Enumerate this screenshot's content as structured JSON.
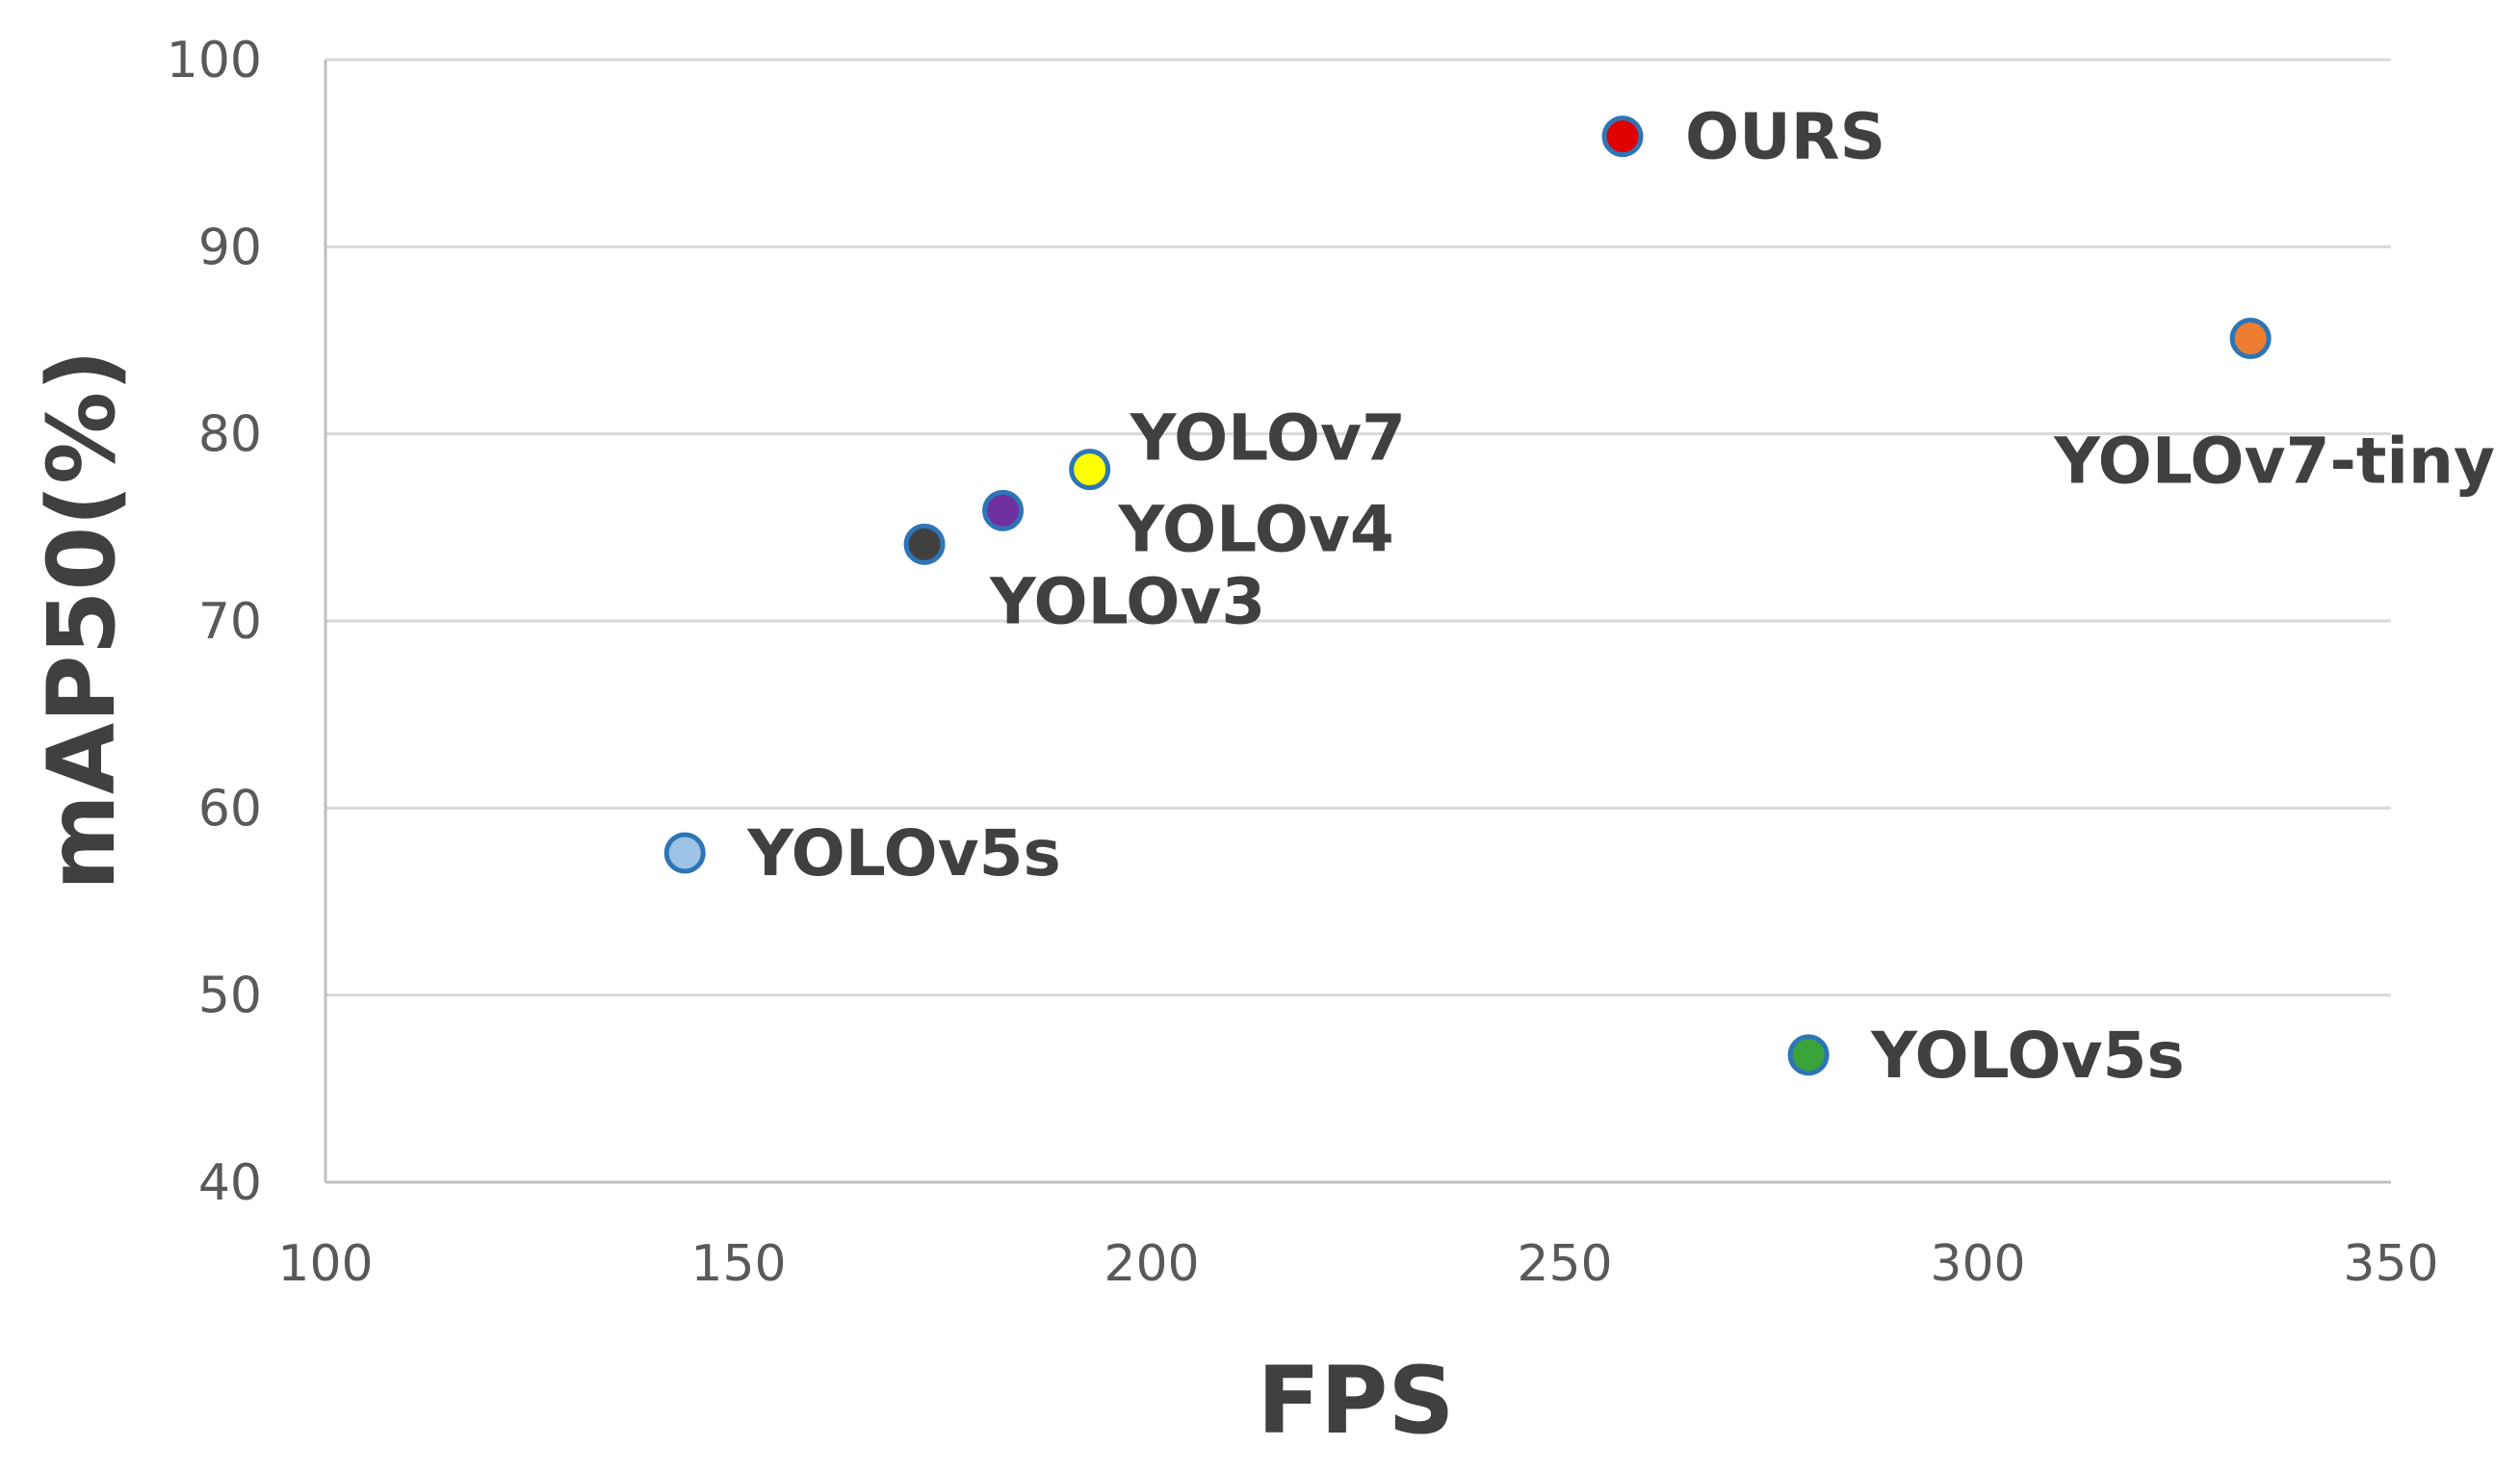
{
  "chart_data": {
    "type": "scatter",
    "title": "",
    "xlabel": "FPS",
    "ylabel": "mAP50(%)",
    "xlim": [
      100,
      350
    ],
    "ylim": [
      40,
      100
    ],
    "x_ticks": [
      "100",
      "150",
      "200",
      "250",
      "300",
      "350"
    ],
    "y_ticks": [
      "40",
      "50",
      "60",
      "70",
      "80",
      "90",
      "100"
    ],
    "grid": "horizontal",
    "legend": "none",
    "marker_edge_color": "#2e75b6",
    "points": [
      {
        "label": "OURS",
        "x": 257,
        "y": 95.9,
        "color": "#e00000",
        "label_side": "right"
      },
      {
        "label": "YOLOv7-tiny",
        "x": 333,
        "y": 85.1,
        "color": "#ed7d31",
        "label_side": "below"
      },
      {
        "label": "YOLOv7",
        "x": 192.5,
        "y": 78.1,
        "color": "#ffff00",
        "label_side": "upper-right"
      },
      {
        "label": "YOLOv4",
        "x": 182,
        "y": 75.9,
        "color": "#7030a0",
        "label_side": "lower-right"
      },
      {
        "label": "YOLOv3",
        "x": 172.5,
        "y": 74.1,
        "color": "#404040",
        "label_side": "lower-right"
      },
      {
        "label": "YOLOv5s",
        "x": 143.5,
        "y": 57.6,
        "color": "#9dc3e6",
        "label_side": "right"
      },
      {
        "label": "YOLOv5s",
        "x": 279.5,
        "y": 46.8,
        "color": "#3aa33a",
        "label_side": "right"
      }
    ]
  }
}
